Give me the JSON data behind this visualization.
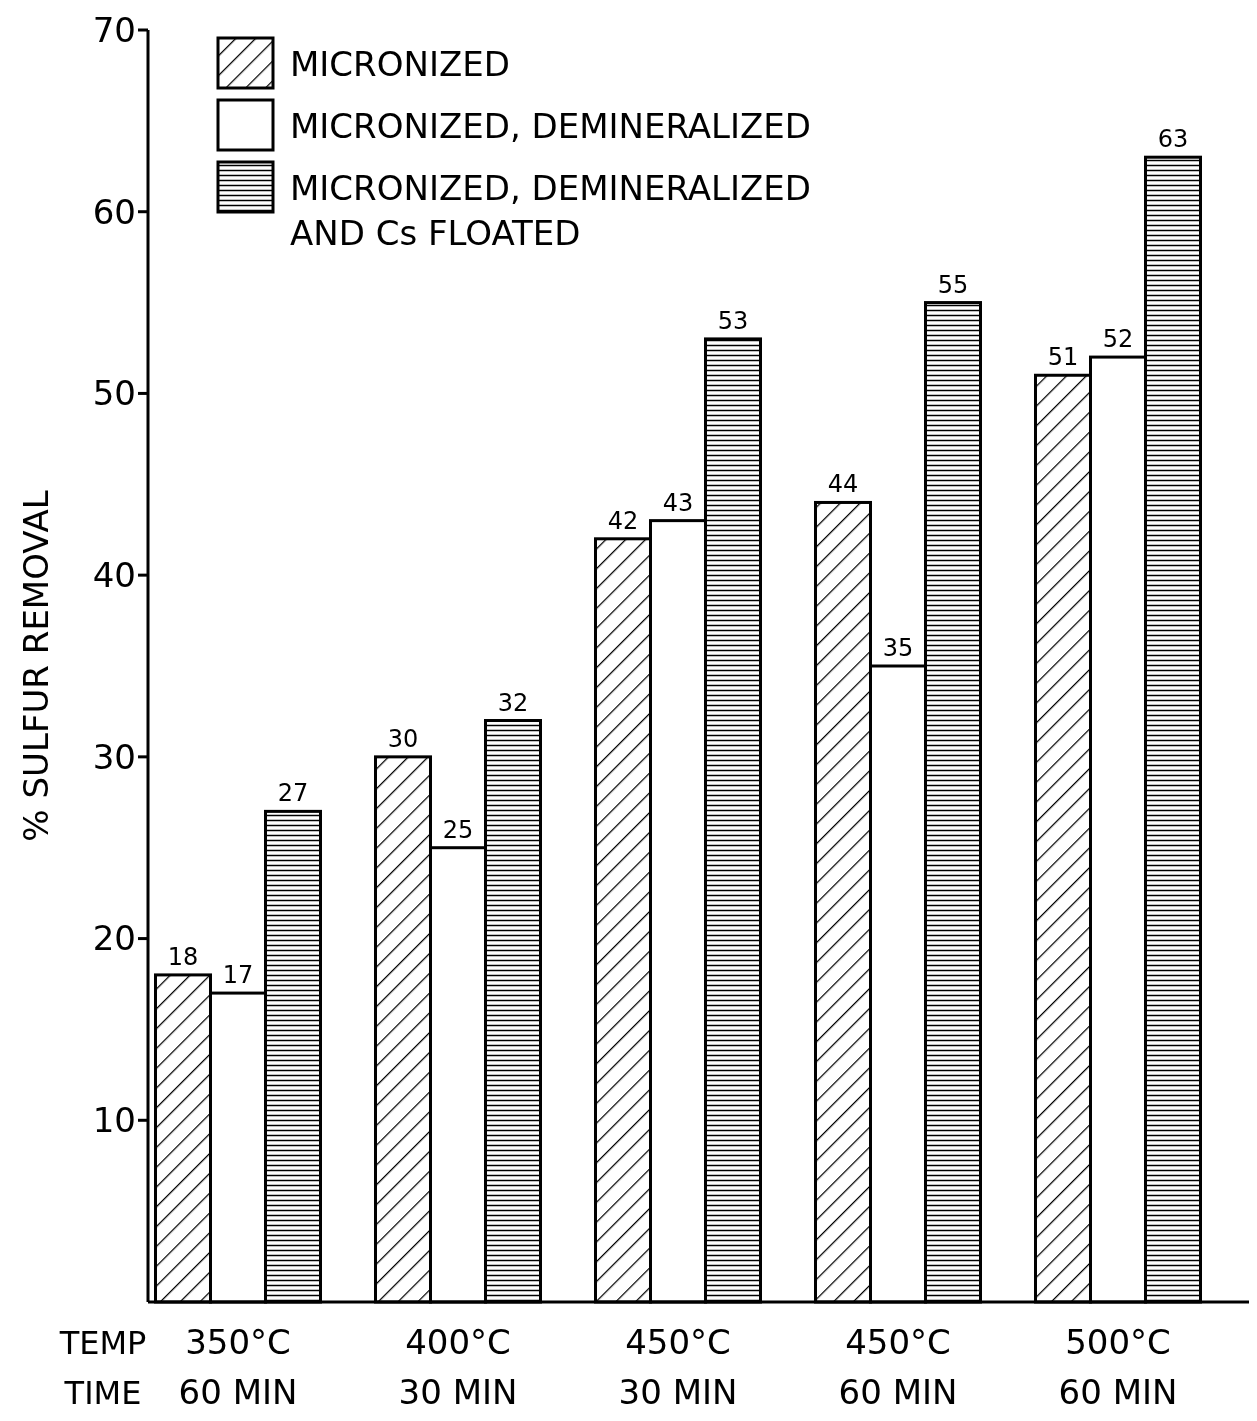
{
  "chart_data": {
    "type": "bar",
    "ylabel": "% SULFUR REMOVAL",
    "categories": [
      "350°C\n60 MIN",
      "400°C\n30 MIN",
      "450°C\n30 MIN",
      "450°C\n60 MIN",
      "500°C\n60 MIN"
    ],
    "series": [
      {
        "name": "MICRONIZED",
        "color": "#ffffff",
        "values": [
          18,
          30,
          42,
          44,
          51
        ]
      },
      {
        "name": "MICRONIZED, DEMINERALIZED",
        "color": "#ffffff",
        "values": [
          17,
          25,
          43,
          35,
          52
        ]
      },
      {
        "name": "MICRONIZED, DEMINERALIZED\nAND Cs FLOATED",
        "color": "#ffffff",
        "values": [
          27,
          32,
          53,
          55,
          63
        ]
      }
    ],
    "ylim": [
      0,
      70
    ],
    "yticks": [
      10,
      20,
      30,
      40,
      50,
      60,
      70
    ],
    "grid": false,
    "legend": "top left",
    "data_labels": true,
    "annotations": [
      "TEMP",
      "TIME"
    ]
  }
}
